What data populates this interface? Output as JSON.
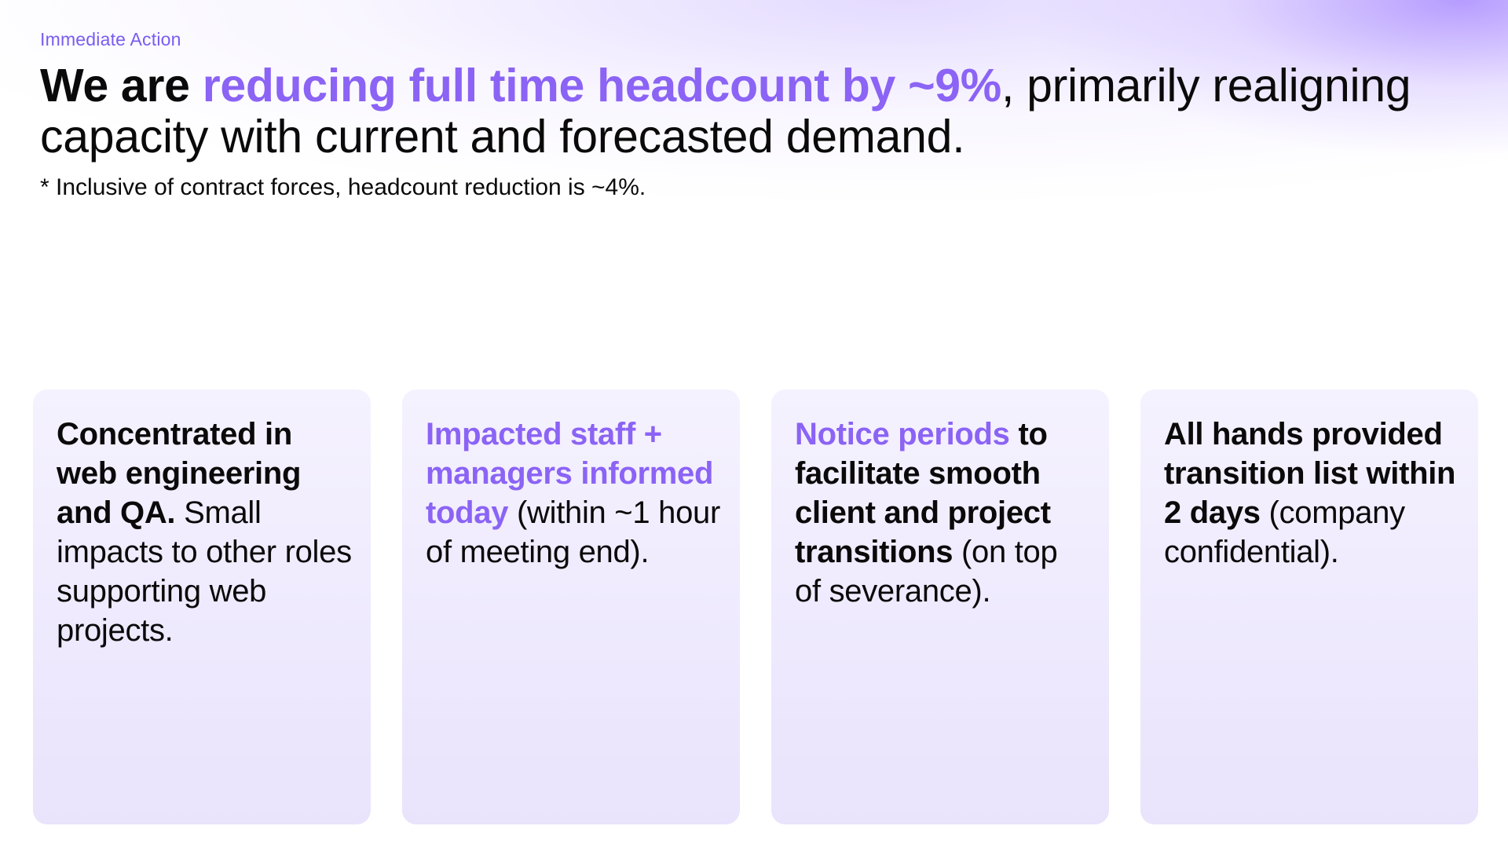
{
  "eyebrow": "Immediate Action",
  "headline": {
    "lead": "We are ",
    "highlight": "reducing full time headcount by ~9%",
    "rest": ", primarily realigning capacity with current and forecasted demand."
  },
  "footnote": "* Inclusive of contract forces, headcount reduction is ~4%.",
  "cards": [
    {
      "bold": "Concentrated in web engineering and QA.",
      "text": " Small impacts to other roles supporting web projects."
    },
    {
      "accent": "Impacted staff + managers informed today",
      "text": " (within ~1 hour of meeting end)."
    },
    {
      "accent": "Notice periods",
      "bold": " to facilitate smooth client and project transitions",
      "text": " (on top of severance)."
    },
    {
      "bold": "All hands provided transition list within 2 days",
      "text": " (company confidential)."
    }
  ],
  "colors": {
    "accent": "#8b63f5",
    "eyebrow": "#7a5cf0",
    "card_bg": "#ece6fd"
  }
}
